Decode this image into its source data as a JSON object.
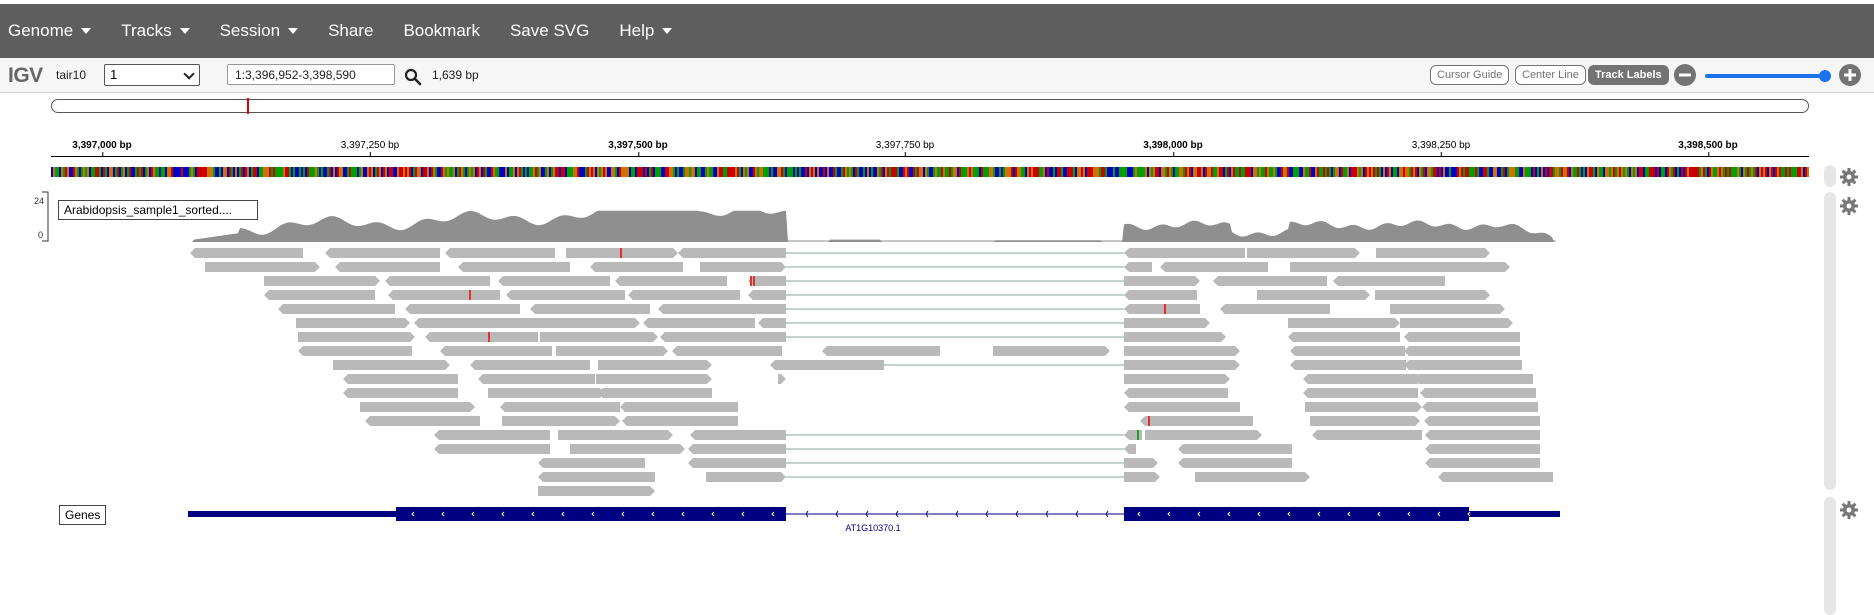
{
  "navbar": {
    "items": [
      {
        "label": "Genome",
        "dropdown": true
      },
      {
        "label": "Tracks",
        "dropdown": true
      },
      {
        "label": "Session",
        "dropdown": true
      },
      {
        "label": "Share",
        "dropdown": false
      },
      {
        "label": "Bookmark",
        "dropdown": false
      },
      {
        "label": "Save SVG",
        "dropdown": false
      },
      {
        "label": "Help",
        "dropdown": true
      }
    ]
  },
  "toolbar": {
    "logo": "IGV",
    "genome": "tair10",
    "chromosome": "1",
    "locus": "1:3,396,952-3,398,590",
    "window_size": "1,639 bp",
    "buttons": {
      "cursor_guide": "Cursor Guide",
      "center_line": "Center Line",
      "track_labels": "Track Labels"
    },
    "zoom_level": 1.0
  },
  "ruler": {
    "ticks": [
      {
        "label": "3,397,000 bp",
        "major": true
      },
      {
        "label": "3,397,250 bp",
        "major": false
      },
      {
        "label": "3,397,500 bp",
        "major": true
      },
      {
        "label": "3,397,750 bp",
        "major": false
      },
      {
        "label": "3,398,000 bp",
        "major": true
      },
      {
        "label": "3,398,250 bp",
        "major": false
      },
      {
        "label": "3,398,500 bp",
        "major": true
      }
    ]
  },
  "tracks": {
    "alignment": {
      "label": "Arabidopsis_sample1_sorted....",
      "coverage_max": "24",
      "coverage_min": "0"
    },
    "genes": {
      "label": "Genes",
      "gene_name": "AT1G10370.1"
    }
  },
  "colors": {
    "navbar": "#5e5e5e",
    "read": "#b9b9b9",
    "coverage": "#8f8f8f",
    "gene": "#000080",
    "mismatch": "#e03030",
    "zoom": "#1a73e8"
  }
}
